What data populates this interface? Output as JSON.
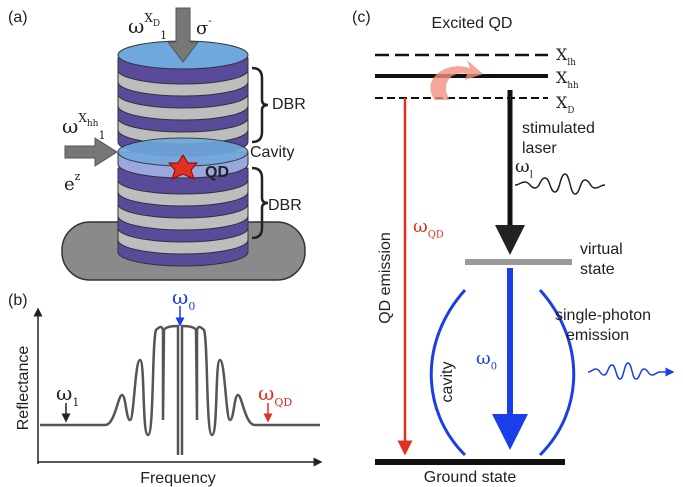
{
  "panel_labels": [
    "(a)",
    "(b)",
    "(c)"
  ],
  "panel_a": {
    "pump_top": {
      "base": "ω",
      "sub": "1",
      "sup": "X",
      "sup_sub": "D"
    },
    "polarization_top": {
      "base": "σ",
      "sup": "-"
    },
    "pump_side": {
      "base": "ω",
      "sub": "1",
      "sup": "X",
      "sup_sub": "hh"
    },
    "polarization_side": {
      "base": "e",
      "sup": "z"
    },
    "dbr_top": "DBR",
    "cavity": "Cavity",
    "qd": "QD",
    "dbr_bottom": "DBR"
  },
  "panel_b": {
    "y_axis": "Reflectance",
    "x_axis": "Frequency",
    "cavity_mode": {
      "base": "ω",
      "sub": "0"
    },
    "laser": {
      "base": "ω",
      "sub": "1"
    },
    "qd_line": {
      "base": "ω",
      "sub": "QD"
    }
  },
  "panel_c": {
    "title": "Excited QD",
    "levels": [
      {
        "base": "X",
        "sub": "lh"
      },
      {
        "base": "X",
        "sub": "hh"
      },
      {
        "base": "X",
        "sub": "D"
      }
    ],
    "stimulated": [
      "stimulated",
      "laser"
    ],
    "laser": {
      "base": "ω",
      "sub": "l"
    },
    "qd_emission_freq": {
      "base": "ω",
      "sub": "QD"
    },
    "qd_emission": "QD emission",
    "virtual": [
      "virtual",
      "state"
    ],
    "single_photon": [
      "single-photon",
      "emission"
    ],
    "cavity": "cavity",
    "cavity_freq": {
      "base": "ω",
      "sub": "0"
    },
    "ground": "Ground state"
  }
}
